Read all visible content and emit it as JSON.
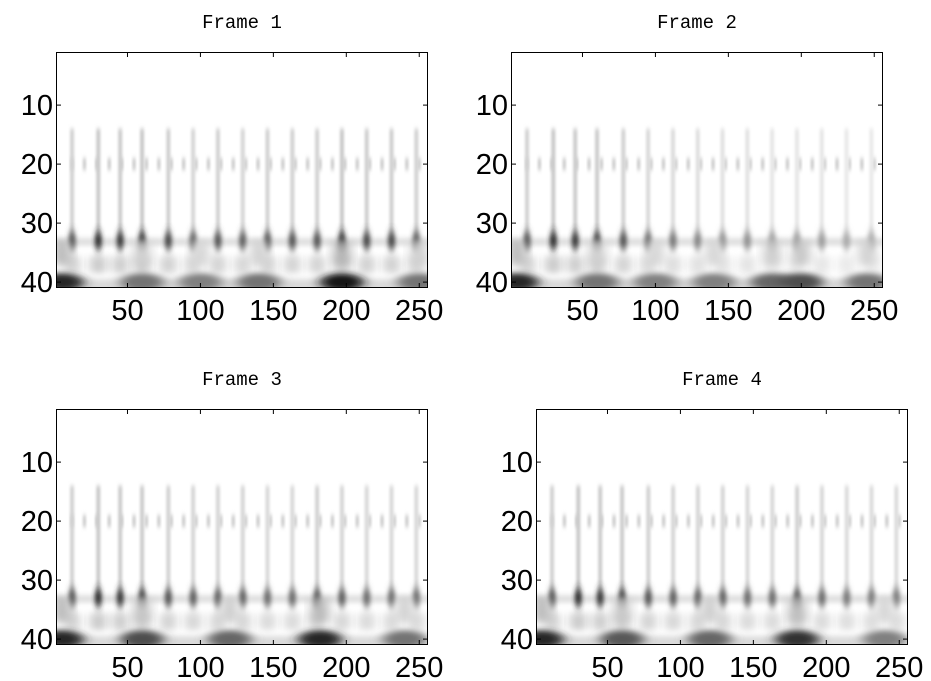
{
  "figure": {
    "colormap": "gray (white = low, black = high)",
    "frame_color": "#000000",
    "background_color": "#ffffff"
  },
  "chart_data": [
    {
      "type": "heatmap",
      "title": "Frame 1",
      "xlabel": "",
      "ylabel": "",
      "xlim": [
        1,
        256
      ],
      "ylim": [
        41,
        1
      ],
      "xticks": [
        50,
        100,
        150,
        200,
        250
      ],
      "yticks": [
        10,
        20,
        30,
        40
      ],
      "grid": false,
      "features": [
        {
          "row": 20,
          "band_weak": true
        },
        {
          "row": 33,
          "pulses_x": [
            12,
            30,
            45,
            60,
            78,
            95,
            112,
            129,
            146,
            163,
            180,
            197,
            214,
            231,
            248
          ],
          "pulse_strength": [
            0.7,
            0.85,
            0.8,
            0.85,
            0.75,
            0.65,
            0.7,
            0.65,
            0.7,
            0.7,
            0.7,
            0.85,
            0.75,
            0.75,
            0.7
          ]
        },
        {
          "row": 40,
          "blobs_x": [
            5,
            60,
            100,
            140,
            197,
            250
          ],
          "blob_strength": [
            0.85,
            0.55,
            0.5,
            0.55,
            0.9,
            0.55
          ]
        }
      ]
    },
    {
      "type": "heatmap",
      "title": "Frame 2",
      "xlabel": "",
      "ylabel": "",
      "xlim": [
        1,
        256
      ],
      "ylim": [
        41,
        1
      ],
      "xticks": [
        50,
        100,
        150,
        200,
        250
      ],
      "yticks": [
        10,
        20,
        30,
        40
      ],
      "grid": false,
      "features": [
        {
          "row": 20,
          "band_weak": true
        },
        {
          "row": 33,
          "pulses_x": [
            12,
            30,
            45,
            60,
            78,
            95,
            112,
            129,
            146,
            163,
            180,
            197,
            214,
            231,
            248
          ],
          "pulse_strength": [
            0.7,
            0.85,
            0.8,
            0.8,
            0.7,
            0.6,
            0.55,
            0.5,
            0.45,
            0.45,
            0.4,
            0.4,
            0.4,
            0.35,
            0.35
          ]
        },
        {
          "row": 40,
          "blobs_x": [
            5,
            60,
            100,
            140,
            180,
            200,
            245
          ],
          "blob_strength": [
            0.85,
            0.55,
            0.5,
            0.5,
            0.6,
            0.7,
            0.55
          ]
        }
      ]
    },
    {
      "type": "heatmap",
      "title": "Frame 3",
      "xlabel": "",
      "ylabel": "",
      "xlim": [
        1,
        256
      ],
      "ylim": [
        41,
        1
      ],
      "xticks": [
        50,
        100,
        150,
        200,
        250
      ],
      "yticks": [
        10,
        20,
        30,
        40
      ],
      "grid": false,
      "features": [
        {
          "row": 20,
          "band_weak": true
        },
        {
          "row": 33,
          "pulses_x": [
            12,
            30,
            45,
            60,
            78,
            95,
            112,
            129,
            146,
            163,
            180,
            197,
            214,
            231,
            248
          ],
          "pulse_strength": [
            0.7,
            0.85,
            0.8,
            0.8,
            0.7,
            0.65,
            0.65,
            0.65,
            0.6,
            0.6,
            0.7,
            0.65,
            0.6,
            0.6,
            0.6
          ]
        },
        {
          "row": 40,
          "blobs_x": [
            5,
            60,
            120,
            182,
            240
          ],
          "blob_strength": [
            0.85,
            0.7,
            0.6,
            0.85,
            0.55
          ]
        }
      ]
    },
    {
      "type": "heatmap",
      "title": "Frame 4",
      "xlabel": "",
      "ylabel": "",
      "xlim": [
        1,
        256
      ],
      "ylim": [
        41,
        1
      ],
      "xticks": [
        50,
        100,
        150,
        200,
        250
      ],
      "yticks": [
        10,
        20,
        30,
        40
      ],
      "grid": false,
      "features": [
        {
          "row": 20,
          "band_weak": true
        },
        {
          "row": 33,
          "pulses_x": [
            12,
            30,
            45,
            60,
            78,
            95,
            112,
            129,
            146,
            163,
            180,
            197,
            214,
            231,
            248
          ],
          "pulse_strength": [
            0.7,
            0.85,
            0.8,
            0.8,
            0.7,
            0.65,
            0.65,
            0.65,
            0.6,
            0.6,
            0.7,
            0.6,
            0.55,
            0.55,
            0.55
          ]
        },
        {
          "row": 40,
          "blobs_x": [
            5,
            60,
            120,
            180,
            240
          ],
          "blob_strength": [
            0.85,
            0.65,
            0.6,
            0.8,
            0.5
          ]
        }
      ]
    }
  ]
}
